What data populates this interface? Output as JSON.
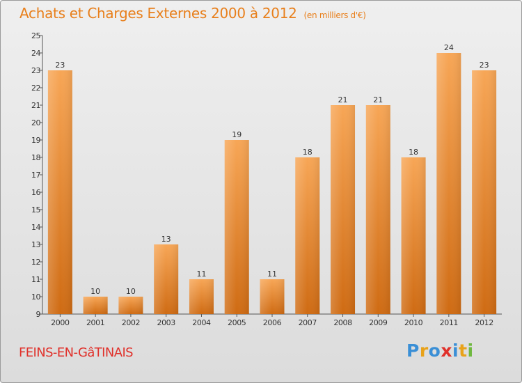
{
  "title": "Achats et Charges Externes 2000 à 2012",
  "unit_label": "(en milliers d'€)",
  "location": "FEINS-EN-GâTINAIS",
  "logo": {
    "text": "Proxiti",
    "letters": [
      {
        "ch": "P",
        "color": "#3a8fd6"
      },
      {
        "ch": "r",
        "color": "#e8a21a"
      },
      {
        "ch": "o",
        "color": "#3a8fd6"
      },
      {
        "ch": "x",
        "color": "#e0302a"
      },
      {
        "ch": "i",
        "color": "#3a8fd6"
      },
      {
        "ch": "t",
        "color": "#e8a21a"
      },
      {
        "ch": "i",
        "color": "#6fb83f"
      }
    ]
  },
  "colors": {
    "title": "#e87f1b",
    "location": "#e0302a",
    "bar_top": "#f7a656",
    "bar_bottom": "#cf6b13",
    "axis": "#555555"
  },
  "chart_data": {
    "type": "bar",
    "categories": [
      "2000",
      "2001",
      "2002",
      "2003",
      "2004",
      "2005",
      "2006",
      "2007",
      "2008",
      "2009",
      "2010",
      "2011",
      "2012"
    ],
    "values": [
      23,
      10,
      10,
      13,
      11,
      19,
      11,
      18,
      21,
      21,
      18,
      24,
      23
    ],
    "ylim": [
      9,
      25
    ],
    "yticks": [
      9,
      10,
      11,
      12,
      13,
      14,
      15,
      16,
      17,
      18,
      19,
      20,
      21,
      22,
      23,
      24,
      25
    ],
    "grid": false,
    "data_labels": true
  }
}
